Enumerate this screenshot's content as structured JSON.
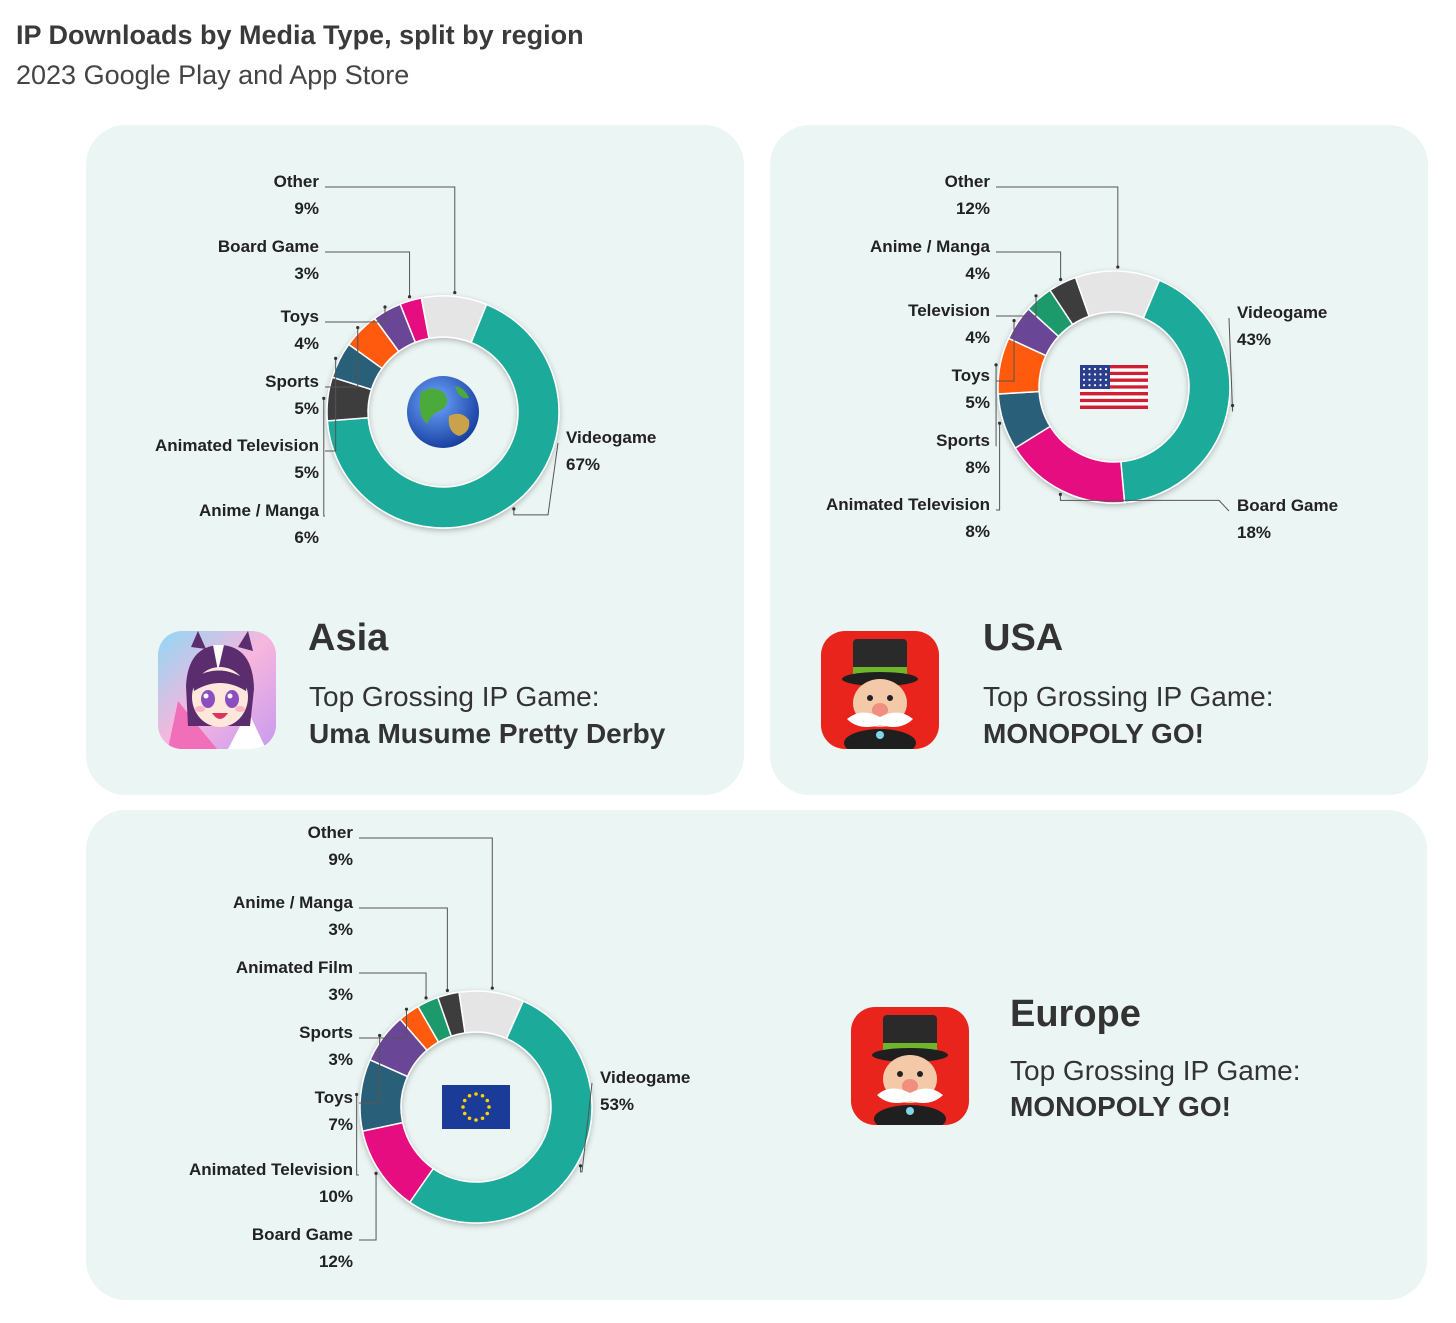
{
  "header": {
    "title": "IP Downloads by Media Type, split by region",
    "subtitle": "2023 Google Play and App Store"
  },
  "colors": {
    "Videogame": "#1aaa9b",
    "Board Game": "#e5087f",
    "Animated Television": "#2a5f7a",
    "Anime / Manga": "#3c3c3c",
    "Sports": "#ff5a0e",
    "Toys": "#6b4696",
    "Television": "#1a9a6c",
    "Animated Film": "#1a9a6c",
    "Other": "#e5e5e5"
  },
  "regions": [
    {
      "id": "asia",
      "name": "Asia",
      "grossing_label": "Top Grossing IP Game:",
      "game": "Uma Musume Pretty Derby",
      "center_icon": "globe-icon",
      "app_icon": "anime-character-icon"
    },
    {
      "id": "usa",
      "name": "USA",
      "grossing_label": "Top Grossing IP Game:",
      "game": "MONOPOLY GO!",
      "center_icon": "us-flag-icon",
      "app_icon": "monopoly-man-icon"
    },
    {
      "id": "europe",
      "name": "Europe",
      "grossing_label": "Top Grossing IP Game:",
      "game": "MONOPOLY GO!",
      "center_icon": "eu-flag-icon",
      "app_icon": "monopoly-man-icon"
    }
  ],
  "chart_data": [
    {
      "type": "pie",
      "variant": "donut",
      "region": "Asia",
      "slices": [
        {
          "label": "Videogame",
          "value": 67,
          "display": "67%"
        },
        {
          "label": "Anime / Manga",
          "value": 6,
          "display": "6%"
        },
        {
          "label": "Animated Television",
          "value": 5,
          "display": "5%"
        },
        {
          "label": "Sports",
          "value": 5,
          "display": "5%"
        },
        {
          "label": "Toys",
          "value": 4,
          "display": "4%"
        },
        {
          "label": "Board Game",
          "value": 3,
          "display": "3%"
        },
        {
          "label": "Other",
          "value": 9,
          "display": "9%"
        }
      ]
    },
    {
      "type": "pie",
      "variant": "donut",
      "region": "USA",
      "slices": [
        {
          "label": "Videogame",
          "value": 43,
          "display": "43%"
        },
        {
          "label": "Board Game",
          "value": 18,
          "display": "18%"
        },
        {
          "label": "Animated Television",
          "value": 8,
          "display": "8%"
        },
        {
          "label": "Sports",
          "value": 8,
          "display": "8%"
        },
        {
          "label": "Toys",
          "value": 5,
          "display": "5%"
        },
        {
          "label": "Television",
          "value": 4,
          "display": "4%"
        },
        {
          "label": "Anime / Manga",
          "value": 4,
          "display": "4%"
        },
        {
          "label": "Other",
          "value": 12,
          "display": "12%"
        }
      ]
    },
    {
      "type": "pie",
      "variant": "donut",
      "region": "Europe",
      "slices": [
        {
          "label": "Videogame",
          "value": 53,
          "display": "53%"
        },
        {
          "label": "Board Game",
          "value": 12,
          "display": "12%"
        },
        {
          "label": "Animated Television",
          "value": 10,
          "display": "10%"
        },
        {
          "label": "Toys",
          "value": 7,
          "display": "7%"
        },
        {
          "label": "Sports",
          "value": 3,
          "display": "3%"
        },
        {
          "label": "Animated Film",
          "value": 3,
          "display": "3%"
        },
        {
          "label": "Anime / Manga",
          "value": 3,
          "display": "3%"
        },
        {
          "label": "Other",
          "value": 9,
          "display": "9%"
        }
      ]
    }
  ]
}
